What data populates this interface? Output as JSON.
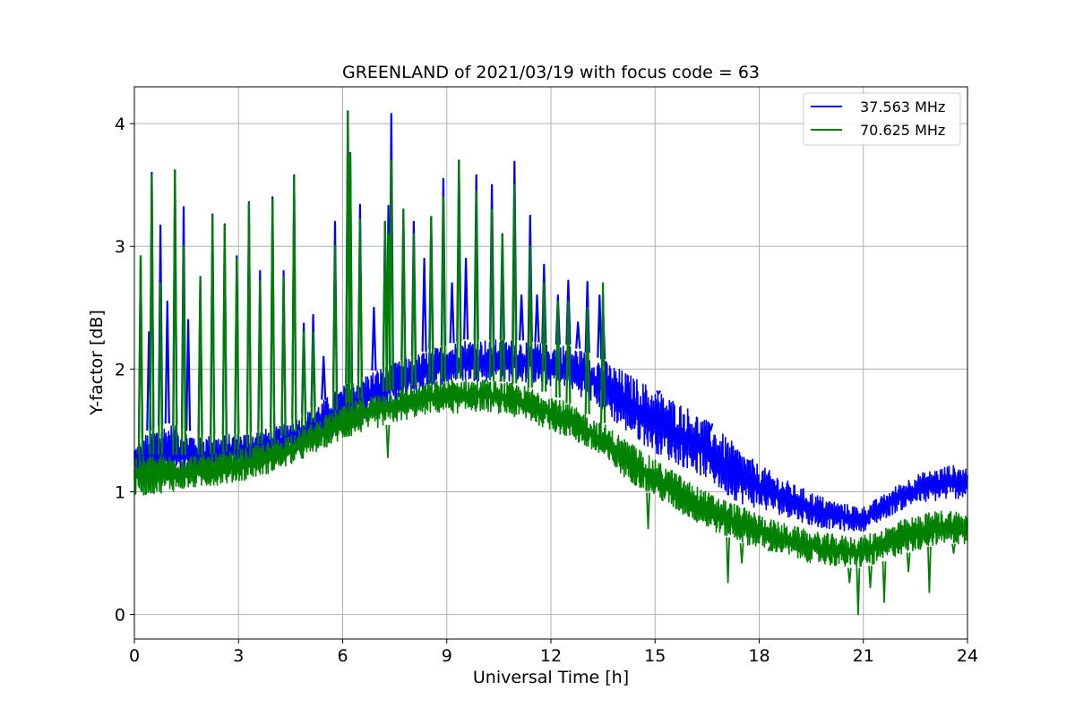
{
  "chart_data": {
    "type": "line",
    "title": "GREENLAND of 2021/03/19 with focus code = 63",
    "xlabel": "Universal Time [h]",
    "ylabel": "Y-factor [dB]",
    "xlim": [
      0,
      24
    ],
    "ylim": [
      -0.2,
      4.3
    ],
    "xticks": [
      0,
      3,
      6,
      9,
      12,
      15,
      18,
      21,
      24
    ],
    "yticks": [
      0,
      1,
      2,
      3,
      4
    ],
    "grid": true,
    "legend_position": "top-right",
    "series": [
      {
        "name": "37.563 MHz",
        "color": "#0000ff",
        "envelope": {
          "x": [
            0,
            0.5,
            1,
            1.5,
            2,
            2.5,
            3,
            3.5,
            4,
            4.5,
            5,
            5.5,
            6,
            6.5,
            7,
            7.5,
            8,
            8.5,
            9,
            9.5,
            10,
            10.5,
            11,
            11.5,
            12,
            12.5,
            13,
            13.5,
            14,
            14.5,
            15,
            15.5,
            16,
            16.5,
            17,
            17.5,
            18,
            18.5,
            19,
            19.5,
            20,
            20.5,
            21,
            21.5,
            22,
            22.5,
            23,
            23.5,
            24
          ],
          "low": [
            1.05,
            1.1,
            1.12,
            1.12,
            1.12,
            1.14,
            1.18,
            1.2,
            1.24,
            1.3,
            1.36,
            1.42,
            1.5,
            1.58,
            1.64,
            1.72,
            1.78,
            1.84,
            1.88,
            1.9,
            1.9,
            1.9,
            1.9,
            1.88,
            1.86,
            1.82,
            1.76,
            1.66,
            1.52,
            1.42,
            1.32,
            1.24,
            1.18,
            1.1,
            0.98,
            0.9,
            0.86,
            0.82,
            0.78,
            0.72,
            0.7,
            0.68,
            0.68,
            0.76,
            0.84,
            0.9,
            0.92,
            0.94,
            0.95
          ],
          "high": [
            1.38,
            1.52,
            1.56,
            1.5,
            1.46,
            1.46,
            1.48,
            1.5,
            1.52,
            1.58,
            1.66,
            1.76,
            1.86,
            1.94,
            2.0,
            2.05,
            2.1,
            2.16,
            2.2,
            2.24,
            2.24,
            2.24,
            2.24,
            2.22,
            2.2,
            2.2,
            2.14,
            2.08,
            2.0,
            1.92,
            1.84,
            1.76,
            1.68,
            1.58,
            1.46,
            1.34,
            1.22,
            1.14,
            1.06,
            1.0,
            0.94,
            0.9,
            0.88,
            0.96,
            1.06,
            1.14,
            1.18,
            1.22,
            1.2
          ]
        },
        "spikes": [
          {
            "x": 0.18,
            "y": 2.92
          },
          {
            "x": 0.42,
            "y": 2.3
          },
          {
            "x": 0.5,
            "y": 3.6
          },
          {
            "x": 0.75,
            "y": 3.17
          },
          {
            "x": 0.95,
            "y": 2.55
          },
          {
            "x": 1.17,
            "y": 3.62
          },
          {
            "x": 1.42,
            "y": 3.32
          },
          {
            "x": 1.55,
            "y": 2.4
          },
          {
            "x": 1.9,
            "y": 2.75
          },
          {
            "x": 2.25,
            "y": 3.26
          },
          {
            "x": 2.6,
            "y": 3.18
          },
          {
            "x": 2.95,
            "y": 2.92
          },
          {
            "x": 3.3,
            "y": 3.36
          },
          {
            "x": 3.62,
            "y": 2.8
          },
          {
            "x": 3.98,
            "y": 3.4
          },
          {
            "x": 4.3,
            "y": 2.8
          },
          {
            "x": 4.6,
            "y": 3.58
          },
          {
            "x": 4.88,
            "y": 2.37
          },
          {
            "x": 5.15,
            "y": 2.44
          },
          {
            "x": 5.45,
            "y": 2.1
          },
          {
            "x": 5.78,
            "y": 3.2
          },
          {
            "x": 6.15,
            "y": 4.1
          },
          {
            "x": 6.22,
            "y": 3.76
          },
          {
            "x": 6.5,
            "y": 3.34
          },
          {
            "x": 6.9,
            "y": 2.5
          },
          {
            "x": 7.22,
            "y": 3.2
          },
          {
            "x": 7.32,
            "y": 3.33
          },
          {
            "x": 7.4,
            "y": 4.08
          },
          {
            "x": 7.75,
            "y": 3.3
          },
          {
            "x": 8.05,
            "y": 3.2
          },
          {
            "x": 8.35,
            "y": 2.9
          },
          {
            "x": 8.55,
            "y": 3.24
          },
          {
            "x": 8.9,
            "y": 3.55
          },
          {
            "x": 9.15,
            "y": 2.7
          },
          {
            "x": 9.35,
            "y": 3.7
          },
          {
            "x": 9.55,
            "y": 2.9
          },
          {
            "x": 9.85,
            "y": 3.58
          },
          {
            "x": 10.3,
            "y": 3.5
          },
          {
            "x": 10.6,
            "y": 3.1
          },
          {
            "x": 10.95,
            "y": 3.69
          },
          {
            "x": 11.15,
            "y": 2.6
          },
          {
            "x": 11.4,
            "y": 3.25
          },
          {
            "x": 11.6,
            "y": 2.6
          },
          {
            "x": 11.8,
            "y": 2.85
          },
          {
            "x": 12.2,
            "y": 2.6
          },
          {
            "x": 12.5,
            "y": 2.72
          },
          {
            "x": 12.78,
            "y": 2.38
          },
          {
            "x": 13.05,
            "y": 2.71
          },
          {
            "x": 13.4,
            "y": 2.6
          },
          {
            "x": 13.5,
            "y": 2.52
          },
          {
            "x": 15.1,
            "y": 1.8
          },
          {
            "x": 16.6,
            "y": 1.5
          }
        ]
      },
      {
        "name": "70.625 MHz",
        "color": "#008000",
        "envelope": {
          "x": [
            0,
            0.5,
            1,
            1.5,
            2,
            2.5,
            3,
            3.5,
            4,
            4.5,
            5,
            5.5,
            6,
            6.5,
            7,
            7.5,
            8,
            8.5,
            9,
            9.5,
            10,
            10.5,
            11,
            11.5,
            12,
            12.5,
            13,
            13.5,
            14,
            14.5,
            15,
            15.5,
            16,
            16.5,
            17,
            17.5,
            18,
            18.5,
            19,
            19.5,
            20,
            20.5,
            21,
            21.5,
            22,
            22.5,
            23,
            23.5,
            24
          ],
          "low": [
            0.96,
            0.98,
            1.0,
            1.02,
            1.04,
            1.06,
            1.08,
            1.12,
            1.16,
            1.22,
            1.28,
            1.36,
            1.42,
            1.48,
            1.52,
            1.56,
            1.6,
            1.64,
            1.64,
            1.64,
            1.66,
            1.64,
            1.6,
            1.56,
            1.5,
            1.44,
            1.36,
            1.26,
            1.14,
            1.04,
            0.96,
            0.86,
            0.78,
            0.7,
            0.64,
            0.58,
            0.54,
            0.5,
            0.46,
            0.42,
            0.4,
            0.38,
            0.38,
            0.42,
            0.48,
            0.52,
            0.56,
            0.58,
            0.56
          ],
          "high": [
            1.3,
            1.3,
            1.3,
            1.3,
            1.3,
            1.32,
            1.34,
            1.38,
            1.42,
            1.48,
            1.54,
            1.62,
            1.7,
            1.76,
            1.8,
            1.84,
            1.86,
            1.9,
            1.92,
            1.92,
            1.92,
            1.9,
            1.88,
            1.84,
            1.8,
            1.72,
            1.64,
            1.56,
            1.46,
            1.36,
            1.26,
            1.18,
            1.08,
            1.0,
            0.94,
            0.88,
            0.82,
            0.76,
            0.72,
            0.68,
            0.66,
            0.64,
            0.64,
            0.7,
            0.76,
            0.8,
            0.84,
            0.86,
            0.82
          ]
        },
        "spikes": [
          {
            "x": 0.18,
            "y": 2.92
          },
          {
            "x": 0.5,
            "y": 3.58
          },
          {
            "x": 0.75,
            "y": 2.7
          },
          {
            "x": 1.17,
            "y": 3.62
          },
          {
            "x": 1.42,
            "y": 3.0
          },
          {
            "x": 1.9,
            "y": 2.74
          },
          {
            "x": 2.25,
            "y": 3.25
          },
          {
            "x": 2.6,
            "y": 3.17
          },
          {
            "x": 2.95,
            "y": 2.9
          },
          {
            "x": 3.3,
            "y": 3.35
          },
          {
            "x": 3.62,
            "y": 2.72
          },
          {
            "x": 3.98,
            "y": 3.38
          },
          {
            "x": 4.3,
            "y": 2.75
          },
          {
            "x": 4.6,
            "y": 3.57
          },
          {
            "x": 4.88,
            "y": 2.3
          },
          {
            "x": 5.15,
            "y": 2.3
          },
          {
            "x": 5.78,
            "y": 3.0
          },
          {
            "x": 6.15,
            "y": 4.1
          },
          {
            "x": 6.22,
            "y": 3.75
          },
          {
            "x": 6.5,
            "y": 3.22
          },
          {
            "x": 7.22,
            "y": 3.2
          },
          {
            "x": 7.32,
            "y": 3.1
          },
          {
            "x": 7.4,
            "y": 3.7
          },
          {
            "x": 7.75,
            "y": 3.3
          },
          {
            "x": 8.05,
            "y": 3.1
          },
          {
            "x": 8.55,
            "y": 3.24
          },
          {
            "x": 8.9,
            "y": 3.4
          },
          {
            "x": 9.35,
            "y": 3.69
          },
          {
            "x": 9.85,
            "y": 3.45
          },
          {
            "x": 10.3,
            "y": 3.3
          },
          {
            "x": 10.6,
            "y": 3.1
          },
          {
            "x": 10.95,
            "y": 3.5
          },
          {
            "x": 11.4,
            "y": 3.0
          },
          {
            "x": 11.8,
            "y": 2.7
          },
          {
            "x": 12.2,
            "y": 2.55
          },
          {
            "x": 12.5,
            "y": 2.55
          },
          {
            "x": 13.05,
            "y": 2.5
          },
          {
            "x": 13.5,
            "y": 2.7
          }
        ],
        "dips": [
          {
            "x": 7.3,
            "y": 1.28
          },
          {
            "x": 14.8,
            "y": 0.7
          },
          {
            "x": 17.1,
            "y": 0.26
          },
          {
            "x": 17.5,
            "y": 0.42
          },
          {
            "x": 18.3,
            "y": 0.55
          },
          {
            "x": 20.6,
            "y": 0.26
          },
          {
            "x": 20.85,
            "y": 0.0
          },
          {
            "x": 21.2,
            "y": 0.22
          },
          {
            "x": 21.6,
            "y": 0.1
          },
          {
            "x": 22.3,
            "y": 0.35
          },
          {
            "x": 22.9,
            "y": 0.18
          },
          {
            "x": 23.6,
            "y": 0.5
          }
        ]
      }
    ]
  }
}
